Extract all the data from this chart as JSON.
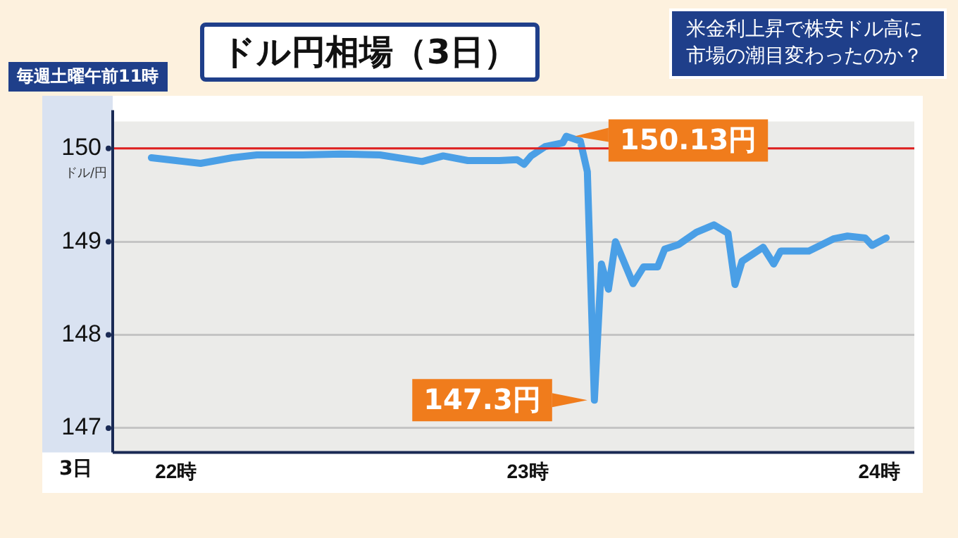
{
  "chart_data": {
    "type": "line",
    "title": "ドル円相場（3日）",
    "subtitle": "米金利上昇で株安ドル高に市場の潮目変わったのか？",
    "ylabel": "ドル/円",
    "xlabel": "3日",
    "annotations": [
      "毎週土曜午前11時",
      {
        "text": "150.13円",
        "x": 23.11,
        "y": 150.13
      },
      {
        "text": "147.3円",
        "x": 23.19,
        "y": 147.3
      }
    ],
    "x": [
      21.93,
      22.0,
      22.07,
      22.16,
      22.23,
      22.36,
      22.47,
      22.58,
      22.7,
      22.76,
      22.83,
      22.92,
      22.97,
      22.99,
      23.01,
      23.05,
      23.1,
      23.11,
      23.15,
      23.17,
      23.19,
      23.21,
      23.23,
      23.25,
      23.3,
      23.33,
      23.37,
      23.39,
      23.43,
      23.48,
      23.53,
      23.57,
      23.59,
      23.61,
      23.67,
      23.7,
      23.72,
      23.8,
      23.87,
      23.91,
      23.96,
      23.98,
      24.02
    ],
    "series": [
      {
        "color": "#4a9fe6",
        "values": [
          149.9,
          149.87,
          149.84,
          149.9,
          149.93,
          149.93,
          149.94,
          149.93,
          149.86,
          149.92,
          149.87,
          149.87,
          149.88,
          149.83,
          149.92,
          150.02,
          150.06,
          150.13,
          150.08,
          149.75,
          147.3,
          148.76,
          148.49,
          149.0,
          148.55,
          148.73,
          148.73,
          148.92,
          148.97,
          149.1,
          149.18,
          149.09,
          148.54,
          148.79,
          148.94,
          148.76,
          148.9,
          148.9,
          149.03,
          149.06,
          149.04,
          148.96,
          149.04
        ]
      }
    ],
    "xlim": [
      21.82,
      24.1
    ],
    "xticks": [
      {
        "value": 22,
        "label": "22時"
      },
      {
        "value": 23,
        "label": "23時"
      },
      {
        "value": 24,
        "label": "24時"
      }
    ],
    "ylim": [
      146.74,
      150.29
    ],
    "yticks": [
      147,
      148,
      149,
      150
    ],
    "ref_lines": [
      {
        "axis": "y",
        "value": 150,
        "color": "#e02020"
      }
    ],
    "grid": "y",
    "legend": false,
    "marker": "none",
    "line_style": "solid"
  }
}
